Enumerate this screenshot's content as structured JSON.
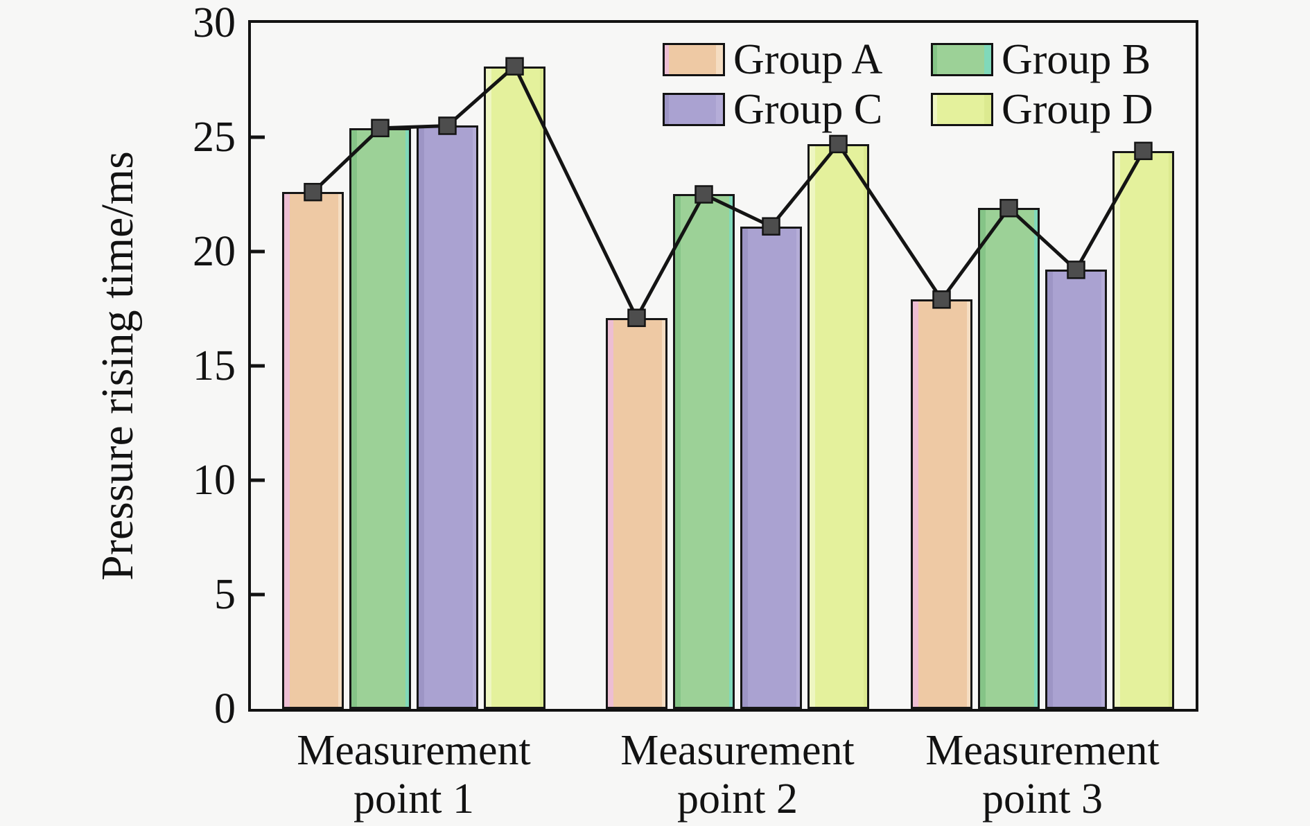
{
  "background_color": "#f7f7f6",
  "ink_color": "#141414",
  "chart_data": {
    "type": "bar",
    "title": "",
    "xlabel": "",
    "ylabel": "Pressure rising time/ms",
    "ylim": [
      0,
      30
    ],
    "yticks": [
      0,
      5,
      10,
      15,
      20,
      25,
      30
    ],
    "grid": false,
    "legend_position": "top-right inside plot, 2 columns x 2 rows, no frame",
    "categories": [
      [
        "Measurement",
        "point 1"
      ],
      [
        "Measurement",
        "point 2"
      ],
      [
        "Measurement",
        "point 3"
      ]
    ],
    "series": [
      {
        "name": "Group A",
        "color": "#eec9a4",
        "edge_left": "#edbed3",
        "edge_right": "#f5ddc2",
        "values": [
          22.6,
          17.1,
          17.9
        ]
      },
      {
        "name": "Group B",
        "color": "#9cd197",
        "edge_left": "#85c487",
        "edge_right": "#80d9ba",
        "values": [
          25.4,
          22.5,
          21.9
        ]
      },
      {
        "name": "Group C",
        "color": "#aaa2d1",
        "edge_left": "#9d95c5",
        "edge_right": "#b5add8",
        "values": [
          25.5,
          21.1,
          19.2
        ]
      },
      {
        "name": "Group D",
        "color": "#e4f19c",
        "edge_left": "#eef6c2",
        "edge_right": "#dcea90",
        "values": [
          28.1,
          24.7,
          24.4
        ]
      }
    ],
    "line_overlay": {
      "description": "black polyline with dark-gray square markers passing through every bar top, ordered Group A to D within each measurement point",
      "color": "#141414",
      "marker": "square",
      "marker_color": "#4d4d4d",
      "values": [
        22.6,
        25.4,
        25.5,
        28.1,
        17.1,
        22.5,
        21.1,
        24.7,
        17.9,
        21.9,
        19.2,
        24.4
      ]
    }
  }
}
